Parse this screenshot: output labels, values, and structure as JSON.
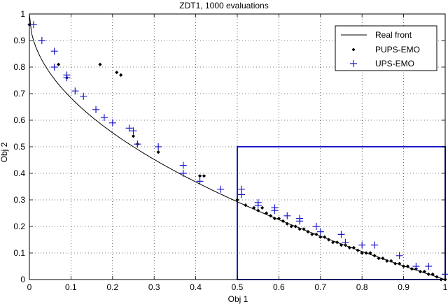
{
  "chart_data": {
    "type": "scatter",
    "title": "ZDT1, 1000 evaluations",
    "xlabel": "Obj 1",
    "ylabel": "Obj 2",
    "xlim": [
      0,
      1
    ],
    "ylim": [
      0,
      1
    ],
    "xticks": [
      "0",
      "0.1",
      "0.2",
      "0.3",
      "0.4",
      "0.5",
      "0.6",
      "0.7",
      "0.8",
      "0.9",
      "1"
    ],
    "yticks": [
      "0",
      "0.1",
      "0.2",
      "0.3",
      "0.4",
      "0.5",
      "0.6",
      "0.7",
      "0.8",
      "0.9",
      "1"
    ],
    "grid": true,
    "legend_position": "top-right",
    "highlight_box": {
      "x": [
        0.5,
        1.0
      ],
      "y": [
        0.0,
        0.5
      ],
      "color": "#1a1acc"
    },
    "series": [
      {
        "name": "Real front",
        "kind": "line",
        "color": "#000000",
        "function": "1 - sqrt(x)",
        "x_range": [
          0,
          1
        ]
      },
      {
        "name": "PUPS-EMO",
        "kind": "points",
        "marker": "diamond",
        "color": "#000000",
        "points": [
          [
            0.0,
            0.96
          ],
          [
            0.07,
            0.81
          ],
          [
            0.09,
            0.76
          ],
          [
            0.17,
            0.81
          ],
          [
            0.21,
            0.78
          ],
          [
            0.22,
            0.77
          ],
          [
            0.25,
            0.54
          ],
          [
            0.26,
            0.51
          ],
          [
            0.31,
            0.48
          ],
          [
            0.41,
            0.39
          ],
          [
            0.42,
            0.39
          ],
          [
            0.5,
            0.3
          ],
          [
            0.52,
            0.28
          ],
          [
            0.54,
            0.27
          ],
          [
            0.55,
            0.26
          ],
          [
            0.56,
            0.27
          ],
          [
            0.57,
            0.25
          ],
          [
            0.58,
            0.24
          ],
          [
            0.59,
            0.23
          ],
          [
            0.6,
            0.23
          ],
          [
            0.61,
            0.22
          ],
          [
            0.62,
            0.21
          ],
          [
            0.63,
            0.2
          ],
          [
            0.64,
            0.2
          ],
          [
            0.65,
            0.19
          ],
          [
            0.66,
            0.19
          ],
          [
            0.67,
            0.18
          ],
          [
            0.68,
            0.17
          ],
          [
            0.69,
            0.17
          ],
          [
            0.7,
            0.16
          ],
          [
            0.71,
            0.16
          ],
          [
            0.72,
            0.15
          ],
          [
            0.73,
            0.14
          ],
          [
            0.74,
            0.14
          ],
          [
            0.75,
            0.13
          ],
          [
            0.76,
            0.13
          ],
          [
            0.77,
            0.12
          ],
          [
            0.78,
            0.12
          ],
          [
            0.79,
            0.11
          ],
          [
            0.8,
            0.1
          ],
          [
            0.81,
            0.1
          ],
          [
            0.82,
            0.1
          ],
          [
            0.83,
            0.09
          ],
          [
            0.84,
            0.08
          ],
          [
            0.85,
            0.08
          ],
          [
            0.86,
            0.07
          ],
          [
            0.87,
            0.07
          ],
          [
            0.88,
            0.06
          ],
          [
            0.89,
            0.06
          ],
          [
            0.9,
            0.05
          ],
          [
            0.91,
            0.05
          ],
          [
            0.92,
            0.04
          ],
          [
            0.93,
            0.04
          ],
          [
            0.94,
            0.03
          ],
          [
            0.95,
            0.03
          ],
          [
            0.96,
            0.02
          ],
          [
            0.97,
            0.02
          ],
          [
            0.98,
            0.01
          ],
          [
            0.99,
            0.0
          ],
          [
            1.0,
            0.0
          ]
        ]
      },
      {
        "name": "UPS-EMO",
        "kind": "points",
        "marker": "plus",
        "color": "#1a1acc",
        "points": [
          [
            0.01,
            0.96
          ],
          [
            0.03,
            0.9
          ],
          [
            0.06,
            0.86
          ],
          [
            0.06,
            0.8
          ],
          [
            0.09,
            0.77
          ],
          [
            0.09,
            0.76
          ],
          [
            0.11,
            0.71
          ],
          [
            0.13,
            0.69
          ],
          [
            0.16,
            0.64
          ],
          [
            0.18,
            0.61
          ],
          [
            0.2,
            0.59
          ],
          [
            0.24,
            0.57
          ],
          [
            0.25,
            0.56
          ],
          [
            0.26,
            0.51
          ],
          [
            0.31,
            0.5
          ],
          [
            0.37,
            0.43
          ],
          [
            0.37,
            0.4
          ],
          [
            0.41,
            0.37
          ],
          [
            0.46,
            0.34
          ],
          [
            0.51,
            0.34
          ],
          [
            0.51,
            0.32
          ],
          [
            0.55,
            0.29
          ],
          [
            0.55,
            0.28
          ],
          [
            0.59,
            0.27
          ],
          [
            0.59,
            0.26
          ],
          [
            0.62,
            0.24
          ],
          [
            0.65,
            0.23
          ],
          [
            0.65,
            0.22
          ],
          [
            0.69,
            0.2
          ],
          [
            0.7,
            0.18
          ],
          [
            0.75,
            0.17
          ],
          [
            0.76,
            0.14
          ],
          [
            0.8,
            0.13
          ],
          [
            0.83,
            0.13
          ],
          [
            0.89,
            0.09
          ],
          [
            0.93,
            0.05
          ],
          [
            0.96,
            0.05
          ],
          [
            1.0,
            0.02
          ]
        ]
      }
    ]
  }
}
